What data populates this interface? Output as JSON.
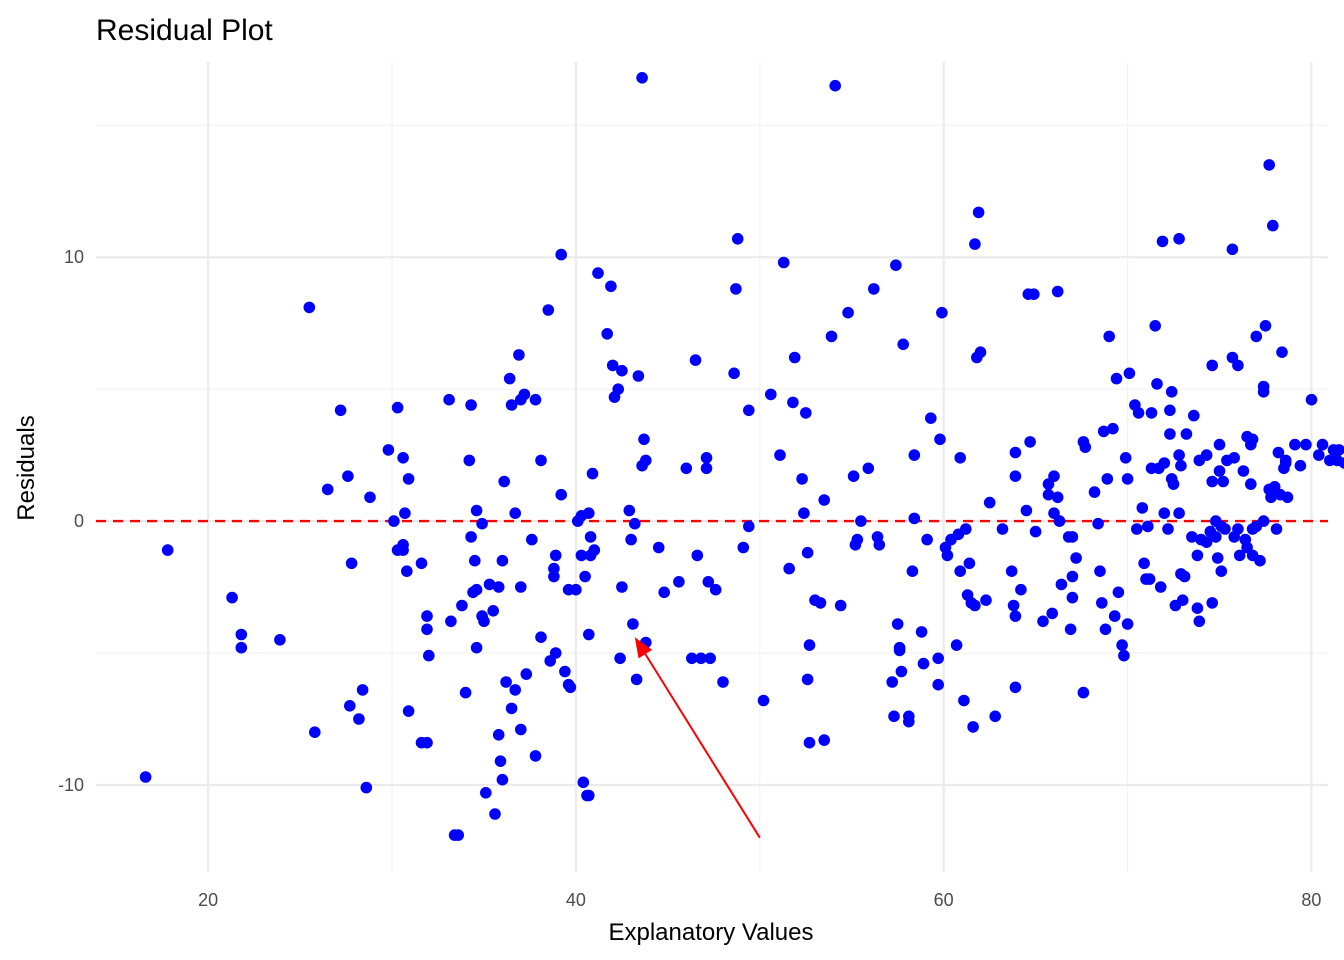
{
  "chart_data": {
    "type": "scatter",
    "title": "Residual Plot",
    "xlabel": "Explanatory Values",
    "ylabel": "Residuals",
    "xlim": [
      13.9,
      80.9
    ],
    "ylim": [
      -13.3,
      17.4
    ],
    "x_ticks": [
      20,
      40,
      60,
      80
    ],
    "x_tick_labels": [
      "20",
      "40",
      "60",
      "80"
    ],
    "y_ticks": [
      -10,
      0,
      10
    ],
    "y_tick_labels": [
      "-10",
      "0",
      "10"
    ],
    "grid": true,
    "legend": "none",
    "point_color": "#0000ff",
    "reference_line": {
      "y": 0,
      "style": "dashed",
      "color": "#ff0000"
    },
    "annotation": {
      "type": "arrow",
      "from": [
        50,
        -12
      ],
      "to": [
        43.2,
        -4.4
      ],
      "color": "#ff0000"
    },
    "points": [
      [
        16.6,
        -9.7
      ],
      [
        17.8,
        -1.1
      ],
      [
        21.3,
        -2.9
      ],
      [
        21.8,
        -4.3
      ],
      [
        21.8,
        -4.8
      ],
      [
        23.9,
        -4.5
      ],
      [
        25.5,
        8.1
      ],
      [
        25.8,
        -8.0
      ],
      [
        26.5,
        1.2
      ],
      [
        27.2,
        4.2
      ],
      [
        27.6,
        1.7
      ],
      [
        27.7,
        -7.0
      ],
      [
        27.8,
        -1.6
      ],
      [
        28.2,
        -7.5
      ],
      [
        28.4,
        -6.4
      ],
      [
        28.6,
        -10.1
      ],
      [
        28.8,
        0.9
      ],
      [
        29.8,
        2.7
      ],
      [
        30.1,
        0.0
      ],
      [
        30.3,
        4.3
      ],
      [
        30.3,
        -1.1
      ],
      [
        30.6,
        2.4
      ],
      [
        30.6,
        -1.1
      ],
      [
        30.6,
        -0.9
      ],
      [
        30.7,
        0.3
      ],
      [
        30.8,
        -1.9
      ],
      [
        30.9,
        1.6
      ],
      [
        30.9,
        -7.2
      ],
      [
        31.6,
        -8.4
      ],
      [
        31.6,
        -1.6
      ],
      [
        31.9,
        -3.6
      ],
      [
        31.9,
        -4.1
      ],
      [
        31.9,
        -8.4
      ],
      [
        32.0,
        -5.1
      ],
      [
        33.1,
        4.6
      ],
      [
        33.2,
        -3.8
      ],
      [
        33.4,
        -11.9
      ],
      [
        33.6,
        -11.9
      ],
      [
        33.8,
        -3.2
      ],
      [
        34.0,
        -6.5
      ],
      [
        34.2,
        2.3
      ],
      [
        34.3,
        -0.6
      ],
      [
        34.3,
        4.4
      ],
      [
        34.4,
        -2.7
      ],
      [
        34.5,
        -1.5
      ],
      [
        34.6,
        -4.8
      ],
      [
        34.6,
        0.4
      ],
      [
        34.6,
        -2.6
      ],
      [
        34.9,
        -0.1
      ],
      [
        34.9,
        -3.6
      ],
      [
        35.0,
        -3.8
      ],
      [
        35.1,
        -10.3
      ],
      [
        35.3,
        -2.4
      ],
      [
        35.5,
        -3.4
      ],
      [
        35.6,
        -11.1
      ],
      [
        35.8,
        -2.5
      ],
      [
        35.8,
        -8.1
      ],
      [
        35.9,
        -9.1
      ],
      [
        36.0,
        -9.8
      ],
      [
        36.0,
        -1.5
      ],
      [
        36.1,
        1.5
      ],
      [
        36.2,
        -6.1
      ],
      [
        36.4,
        5.4
      ],
      [
        36.5,
        -7.1
      ],
      [
        36.7,
        -6.4
      ],
      [
        36.7,
        0.3
      ],
      [
        36.9,
        6.3
      ],
      [
        37.0,
        -7.9
      ],
      [
        37.0,
        -2.5
      ],
      [
        37.0,
        4.6
      ],
      [
        37.2,
        4.8
      ],
      [
        37.3,
        -5.8
      ],
      [
        37.6,
        -0.7
      ],
      [
        37.8,
        4.6
      ],
      [
        37.8,
        -8.9
      ],
      [
        38.1,
        -4.4
      ],
      [
        38.1,
        2.3
      ],
      [
        38.5,
        8.0
      ],
      [
        38.6,
        -5.3
      ],
      [
        38.8,
        -1.8
      ],
      [
        38.8,
        -2.1
      ],
      [
        38.9,
        -1.3
      ],
      [
        38.9,
        -5.0
      ],
      [
        39.2,
        10.1
      ],
      [
        39.2,
        1.0
      ],
      [
        39.4,
        -5.7
      ],
      [
        39.6,
        -2.6
      ],
      [
        39.6,
        -6.2
      ],
      [
        39.7,
        -6.3
      ],
      [
        40.0,
        -2.6
      ],
      [
        40.3,
        0.2
      ],
      [
        40.3,
        -1.3
      ],
      [
        40.4,
        -9.9
      ],
      [
        40.5,
        -2.1
      ],
      [
        40.6,
        -10.4
      ],
      [
        40.7,
        0.3
      ],
      [
        40.7,
        -10.4
      ],
      [
        40.7,
        -4.3
      ],
      [
        40.8,
        -0.6
      ],
      [
        40.8,
        -1.3
      ],
      [
        40.9,
        1.8
      ],
      [
        41.0,
        -1.1
      ],
      [
        41.2,
        9.4
      ],
      [
        41.7,
        7.1
      ],
      [
        41.9,
        8.9
      ],
      [
        42.0,
        5.9
      ],
      [
        42.1,
        4.7
      ],
      [
        42.3,
        5.0
      ],
      [
        42.4,
        -5.2
      ],
      [
        42.5,
        5.7
      ],
      [
        42.5,
        -2.5
      ],
      [
        42.9,
        0.4
      ],
      [
        43.0,
        -0.7
      ],
      [
        43.1,
        -3.9
      ],
      [
        43.2,
        -0.1
      ],
      [
        43.3,
        -6.0
      ],
      [
        43.4,
        5.5
      ],
      [
        43.6,
        2.1
      ],
      [
        43.7,
        3.1
      ],
      [
        43.8,
        2.3
      ],
      [
        43.8,
        -4.6
      ],
      [
        44.5,
        -1.0
      ],
      [
        44.8,
        -2.7
      ],
      [
        45.6,
        -2.3
      ],
      [
        46.0,
        2.0
      ],
      [
        46.3,
        -5.2
      ],
      [
        46.5,
        6.1
      ],
      [
        46.6,
        -1.3
      ],
      [
        46.8,
        -5.2
      ],
      [
        47.1,
        2.4
      ],
      [
        47.1,
        2.0
      ],
      [
        47.2,
        -2.3
      ],
      [
        47.3,
        -5.2
      ],
      [
        48.0,
        -6.1
      ],
      [
        48.6,
        5.6
      ],
      [
        48.7,
        8.8
      ],
      [
        48.8,
        10.7
      ],
      [
        49.1,
        -1.0
      ],
      [
        49.4,
        -0.2
      ],
      [
        49.4,
        4.2
      ],
      [
        50.2,
        -6.8
      ],
      [
        50.6,
        4.8
      ],
      [
        51.1,
        2.5
      ],
      [
        51.3,
        9.8
      ],
      [
        51.6,
        -1.8
      ],
      [
        51.8,
        4.5
      ],
      [
        51.9,
        6.2
      ],
      [
        52.5,
        4.1
      ],
      [
        52.4,
        0.3
      ],
      [
        52.6,
        -1.2
      ],
      [
        52.6,
        -6.0
      ],
      [
        52.7,
        -8.4
      ],
      [
        52.7,
        -4.7
      ],
      [
        53.0,
        -3.0
      ],
      [
        53.3,
        -3.1
      ],
      [
        53.5,
        0.8
      ],
      [
        53.9,
        7.0
      ],
      [
        54.1,
        16.5
      ],
      [
        54.4,
        -3.2
      ],
      [
        54.8,
        7.9
      ],
      [
        55.1,
        1.7
      ],
      [
        55.2,
        -0.9
      ],
      [
        55.3,
        -0.7
      ],
      [
        55.5,
        0.0
      ],
      [
        55.9,
        2.0
      ],
      [
        56.2,
        8.8
      ],
      [
        56.4,
        -0.6
      ],
      [
        56.5,
        -0.9
      ],
      [
        57.2,
        -6.1
      ],
      [
        57.3,
        -7.4
      ],
      [
        57.4,
        9.7
      ],
      [
        57.5,
        -3.9
      ],
      [
        57.6,
        -4.9
      ],
      [
        57.7,
        -5.7
      ],
      [
        57.8,
        6.7
      ],
      [
        58.1,
        -7.6
      ],
      [
        58.1,
        -7.4
      ],
      [
        58.4,
        0.1
      ],
      [
        58.3,
        -1.9
      ],
      [
        58.4,
        2.5
      ],
      [
        58.8,
        -4.2
      ],
      [
        58.9,
        -5.4
      ],
      [
        59.1,
        -0.7
      ],
      [
        59.3,
        3.9
      ],
      [
        59.7,
        -5.2
      ],
      [
        59.7,
        -6.2
      ],
      [
        59.8,
        3.1
      ],
      [
        59.9,
        7.9
      ],
      [
        60.1,
        -1.0
      ],
      [
        60.2,
        -1.3
      ],
      [
        60.4,
        -0.7
      ],
      [
        60.7,
        -4.7
      ],
      [
        60.8,
        -0.5
      ],
      [
        60.9,
        2.4
      ],
      [
        60.9,
        -1.9
      ],
      [
        61.1,
        -6.8
      ],
      [
        61.2,
        -0.3
      ],
      [
        61.3,
        -2.8
      ],
      [
        61.5,
        -3.1
      ],
      [
        61.6,
        -7.8
      ],
      [
        61.7,
        10.5
      ],
      [
        61.7,
        -3.2
      ],
      [
        61.8,
        6.2
      ],
      [
        61.9,
        11.7
      ],
      [
        62.0,
        6.4
      ],
      [
        62.3,
        -3.0
      ],
      [
        62.5,
        0.7
      ],
      [
        62.8,
        -7.4
      ],
      [
        63.2,
        -0.3
      ],
      [
        63.7,
        -1.9
      ],
      [
        63.8,
        -3.2
      ],
      [
        63.9,
        -3.6
      ],
      [
        63.9,
        2.6
      ],
      [
        63.9,
        1.7
      ],
      [
        63.9,
        -6.3
      ],
      [
        64.2,
        -2.6
      ],
      [
        64.5,
        0.4
      ],
      [
        64.6,
        8.6
      ],
      [
        64.7,
        3.0
      ],
      [
        64.9,
        8.6
      ],
      [
        65.0,
        -0.4
      ],
      [
        65.4,
        -3.8
      ],
      [
        65.7,
        1.4
      ],
      [
        65.7,
        1.0
      ],
      [
        65.9,
        -3.5
      ],
      [
        66.0,
        1.7
      ],
      [
        66.0,
        0.3
      ],
      [
        66.2,
        0.9
      ],
      [
        66.2,
        8.7
      ],
      [
        66.3,
        0.0
      ],
      [
        66.4,
        -2.4
      ],
      [
        66.8,
        -0.6
      ],
      [
        66.9,
        -4.1
      ],
      [
        67.0,
        -2.9
      ],
      [
        67.0,
        -2.1
      ],
      [
        67.0,
        -0.6
      ],
      [
        67.2,
        -1.4
      ],
      [
        67.6,
        -6.5
      ],
      [
        67.6,
        3.0
      ],
      [
        67.7,
        2.8
      ],
      [
        68.2,
        1.1
      ],
      [
        68.4,
        -0.1
      ],
      [
        68.5,
        -1.9
      ],
      [
        68.6,
        -3.1
      ],
      [
        68.7,
        3.4
      ],
      [
        68.8,
        -4.1
      ],
      [
        68.9,
        1.6
      ],
      [
        69.0,
        7.0
      ],
      [
        69.2,
        3.5
      ],
      [
        69.3,
        -3.6
      ],
      [
        69.4,
        5.4
      ],
      [
        69.5,
        -2.7
      ],
      [
        69.7,
        -4.7
      ],
      [
        69.8,
        -5.1
      ],
      [
        69.9,
        2.4
      ],
      [
        70.0,
        1.6
      ],
      [
        70.0,
        -3.9
      ],
      [
        70.1,
        5.6
      ],
      [
        70.4,
        4.4
      ],
      [
        70.5,
        -0.3
      ],
      [
        70.6,
        4.1
      ],
      [
        70.8,
        0.5
      ],
      [
        70.9,
        -1.6
      ],
      [
        71.0,
        -2.2
      ],
      [
        71.1,
        -0.2
      ],
      [
        71.2,
        -2.2
      ],
      [
        71.3,
        2.0
      ],
      [
        71.3,
        4.1
      ],
      [
        71.5,
        7.4
      ],
      [
        71.6,
        5.2
      ],
      [
        71.7,
        2.0
      ],
      [
        71.8,
        -2.5
      ],
      [
        71.9,
        10.6
      ],
      [
        72.0,
        0.3
      ],
      [
        72.0,
        2.2
      ],
      [
        72.2,
        -0.3
      ],
      [
        72.3,
        4.2
      ],
      [
        72.3,
        3.3
      ],
      [
        72.4,
        4.9
      ],
      [
        72.4,
        1.6
      ],
      [
        72.5,
        1.4
      ],
      [
        72.8,
        0.3
      ],
      [
        72.8,
        2.5
      ],
      [
        72.8,
        10.7
      ],
      [
        72.9,
        2.1
      ],
      [
        72.9,
        -2.0
      ],
      [
        73.0,
        -3.0
      ],
      [
        73.1,
        -2.1
      ],
      [
        73.2,
        3.3
      ],
      [
        73.5,
        -0.6
      ],
      [
        73.6,
        4.0
      ],
      [
        73.8,
        -1.3
      ],
      [
        73.8,
        -3.3
      ],
      [
        73.9,
        2.3
      ],
      [
        74.0,
        -0.7
      ],
      [
        74.3,
        2.5
      ],
      [
        74.3,
        -0.8
      ],
      [
        74.5,
        -0.4
      ],
      [
        74.6,
        5.9
      ],
      [
        74.6,
        -3.1
      ],
      [
        74.6,
        1.5
      ],
      [
        74.8,
        -0.6
      ],
      [
        74.8,
        0.0
      ],
      [
        74.9,
        -1.4
      ],
      [
        75.0,
        2.9
      ],
      [
        75.1,
        -1.9
      ],
      [
        75.1,
        -0.2
      ],
      [
        75.2,
        1.5
      ],
      [
        75.3,
        -0.3
      ],
      [
        75.4,
        2.3
      ],
      [
        75.7,
        10.3
      ],
      [
        75.7,
        6.2
      ],
      [
        75.8,
        2.4
      ],
      [
        75.8,
        -0.6
      ],
      [
        76.0,
        -0.3
      ],
      [
        76.0,
        5.9
      ],
      [
        76.1,
        -1.3
      ],
      [
        76.3,
        1.9
      ],
      [
        76.4,
        -0.7
      ],
      [
        76.5,
        -1.0
      ],
      [
        76.7,
        2.9
      ],
      [
        76.7,
        1.4
      ],
      [
        76.8,
        -0.3
      ],
      [
        76.8,
        -1.3
      ],
      [
        76.8,
        3.1
      ],
      [
        77.0,
        7.0
      ],
      [
        77.0,
        -0.2
      ],
      [
        77.2,
        -1.5
      ],
      [
        77.4,
        0.0
      ],
      [
        77.4,
        4.9
      ],
      [
        77.4,
        5.1
      ],
      [
        77.5,
        7.4
      ],
      [
        77.7,
        13.5
      ],
      [
        77.7,
        1.2
      ],
      [
        77.8,
        0.9
      ],
      [
        77.9,
        11.2
      ],
      [
        78.0,
        1.3
      ],
      [
        78.1,
        -0.3
      ],
      [
        78.2,
        2.6
      ],
      [
        78.3,
        1.0
      ],
      [
        78.4,
        6.4
      ],
      [
        78.5,
        2.0
      ],
      [
        78.6,
        2.2
      ],
      [
        78.6,
        2.3
      ],
      [
        78.7,
        0.9
      ],
      [
        79.1,
        2.9
      ],
      [
        79.4,
        2.1
      ],
      [
        79.7,
        2.9
      ],
      [
        80.0,
        4.6
      ],
      [
        80.4,
        2.5
      ],
      [
        80.6,
        2.9
      ],
      [
        81.0,
        2.3
      ],
      [
        81.2,
        2.7
      ],
      [
        81.4,
        2.3
      ],
      [
        81.5,
        2.7
      ],
      [
        81.8,
        2.2
      ],
      [
        72.6,
        -3.2
      ],
      [
        73.9,
        -3.8
      ],
      [
        75.0,
        1.9
      ],
      [
        76.5,
        3.2
      ],
      [
        43.6,
        16.8
      ],
      [
        52.3,
        1.6
      ],
      [
        47.6,
        -2.6
      ],
      [
        40.1,
        0.0
      ],
      [
        53.5,
        -8.3
      ],
      [
        36.5,
        4.4
      ],
      [
        57.6,
        -4.8
      ],
      [
        61.4,
        -1.6
      ]
    ]
  }
}
